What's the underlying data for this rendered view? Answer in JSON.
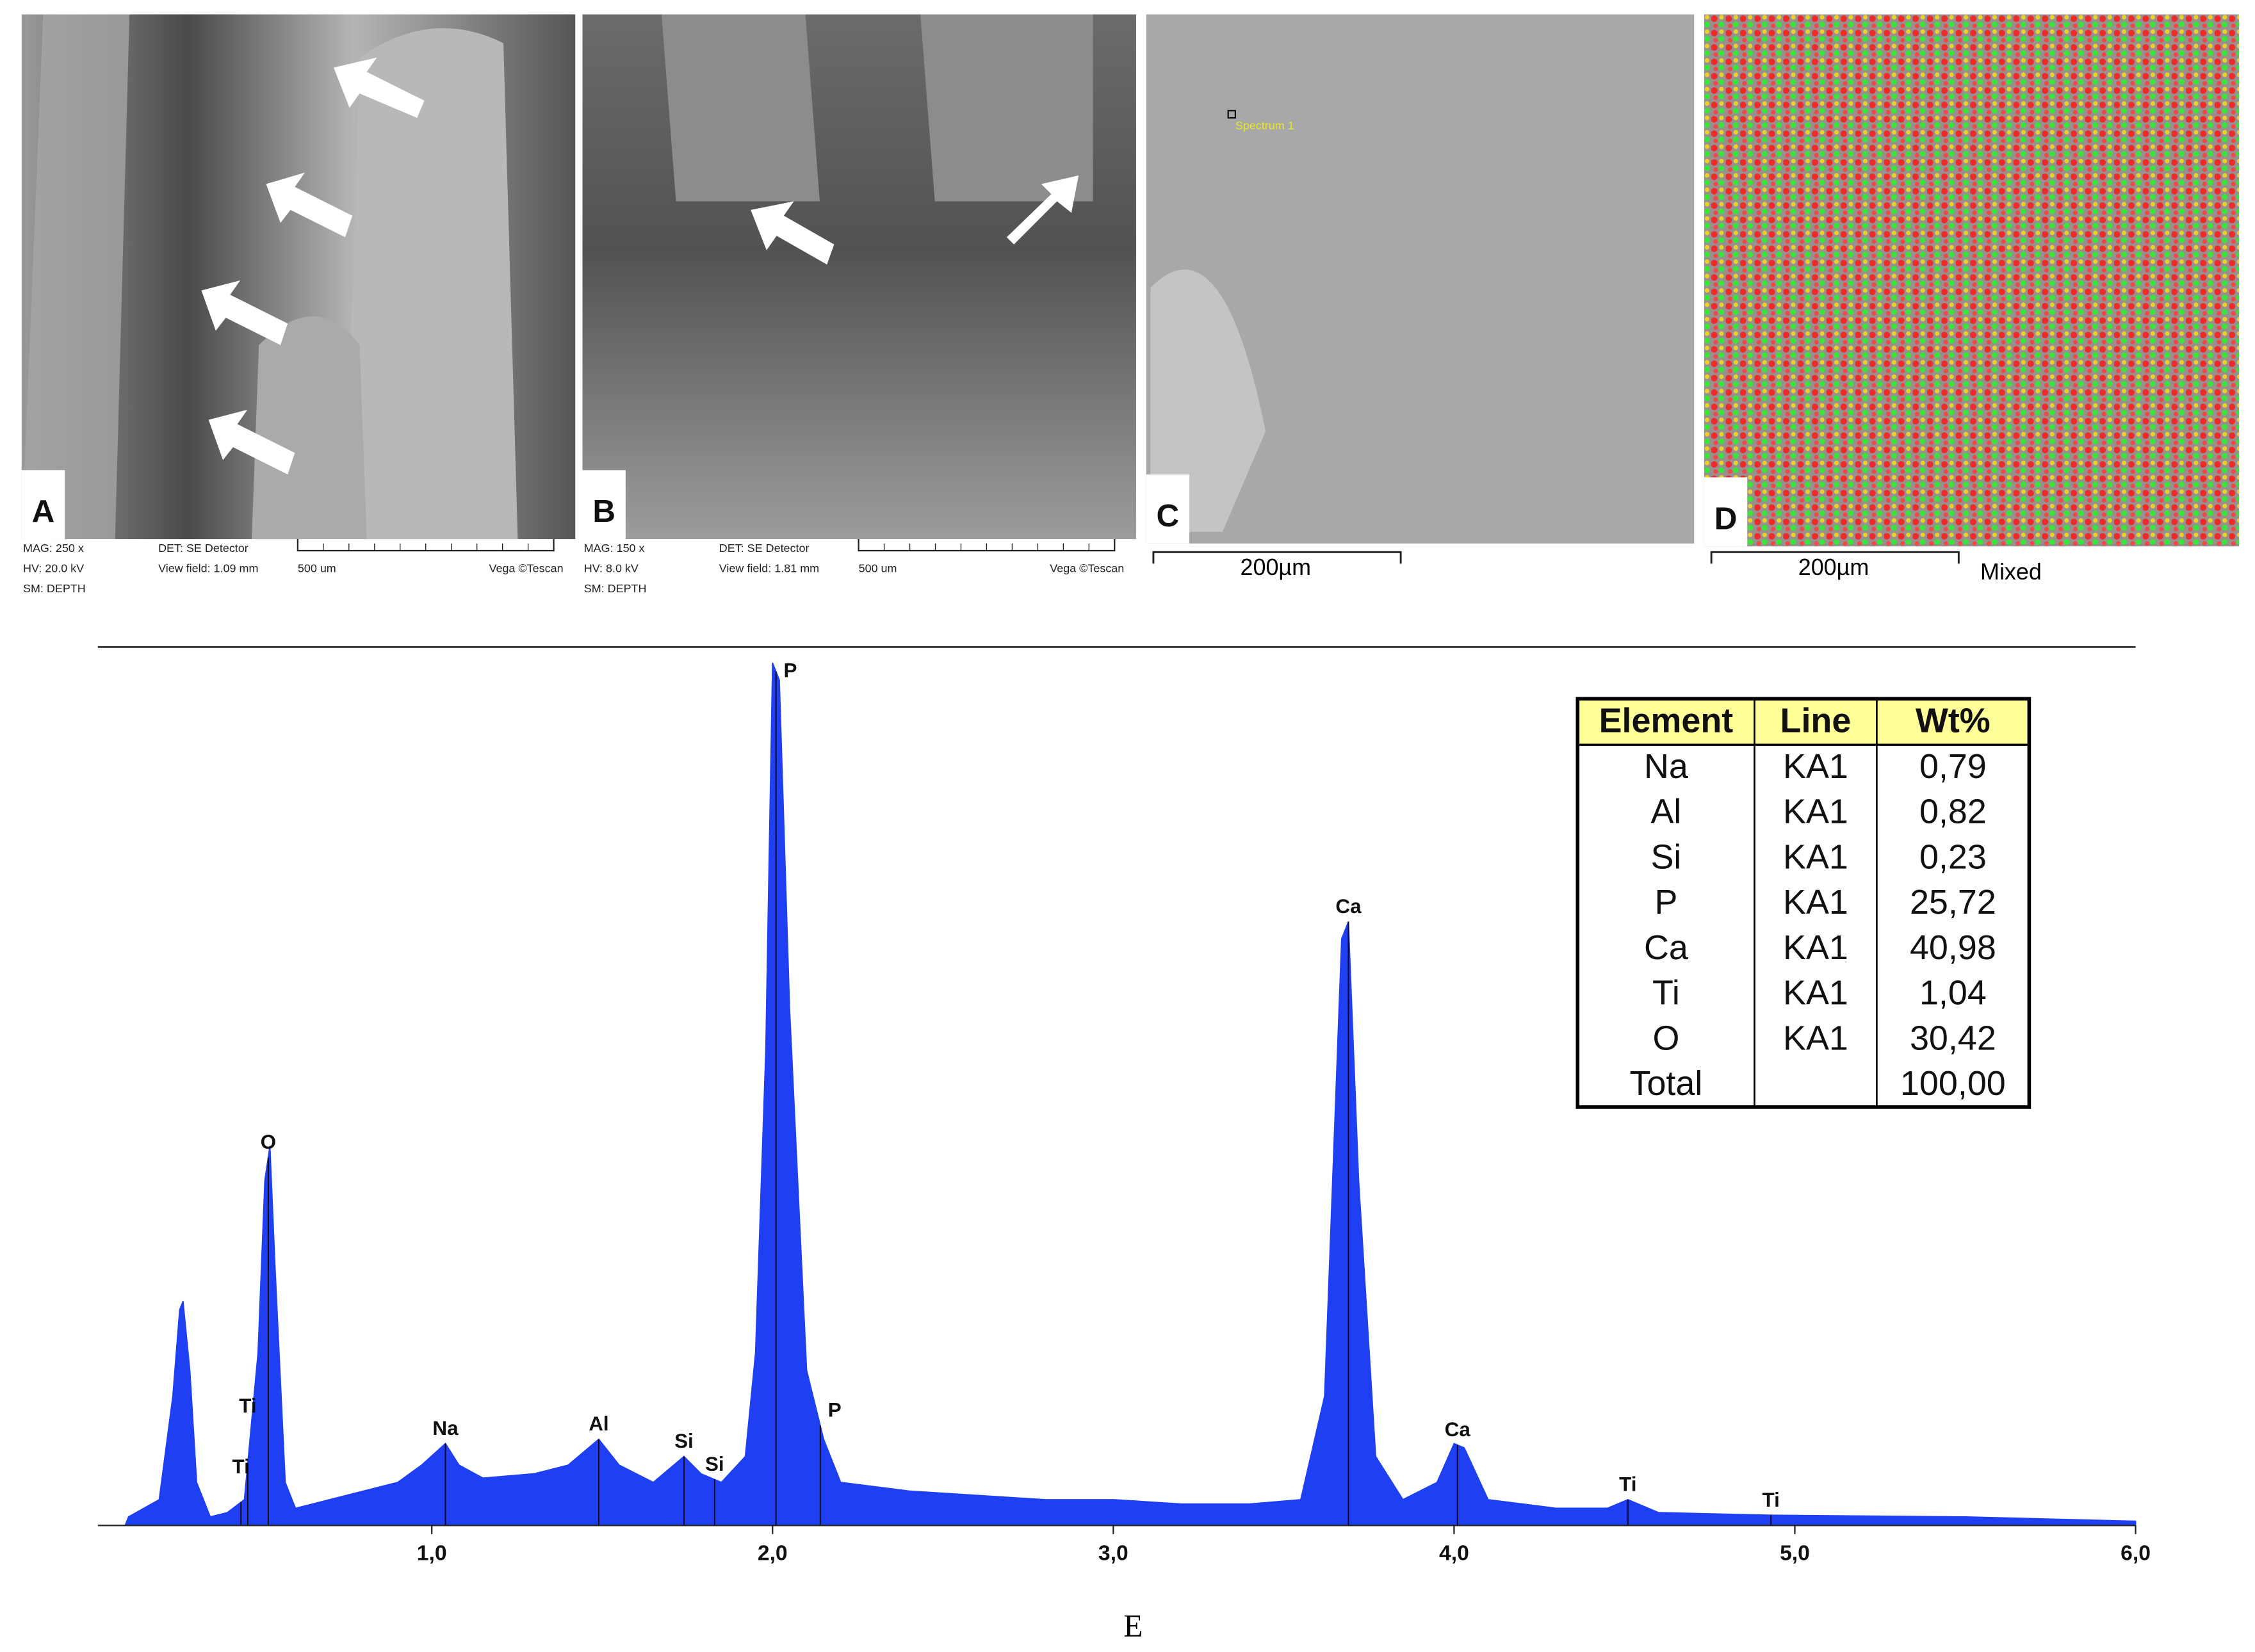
{
  "panels": [
    {
      "label": "A",
      "meta": [
        "MAG: 250 x",
        "HV: 20.0 kV",
        "SM: DEPTH",
        "DET: SE Detector",
        "View field: 1.09 mm",
        "500 um",
        "Vega ©Tescan"
      ]
    },
    {
      "label": "B",
      "meta": [
        "MAG: 150 x",
        "HV: 8.0 kV",
        "SM: DEPTH",
        "DET: SE Detector",
        "View field: 1.81 mm",
        "500 um",
        "Vega ©Tescan"
      ]
    },
    {
      "label": "C",
      "overlay": "Spectrum 1",
      "scale": "200µm"
    },
    {
      "label": "D",
      "scale": "200µm",
      "caption": "Mixed"
    }
  ],
  "chart_data": {
    "type": "area",
    "caption": "E",
    "color": "#1e3ff2",
    "x": [
      0.1,
      0.11,
      0.2,
      0.24,
      0.26,
      0.27,
      0.29,
      0.31,
      0.35,
      0.4,
      0.45,
      0.49,
      0.51,
      0.525,
      0.54,
      0.57,
      0.6,
      0.7,
      0.8,
      0.9,
      0.97,
      1.04,
      1.08,
      1.15,
      1.3,
      1.4,
      1.49,
      1.55,
      1.65,
      1.74,
      1.79,
      1.85,
      1.92,
      1.95,
      1.98,
      2.0,
      2.02,
      2.05,
      2.1,
      2.15,
      2.2,
      2.4,
      2.6,
      2.8,
      3.0,
      3.2,
      3.4,
      3.55,
      3.62,
      3.67,
      3.69,
      3.72,
      3.77,
      3.85,
      3.95,
      4.0,
      4.03,
      4.1,
      4.3,
      4.45,
      4.51,
      4.6,
      4.93,
      5.5,
      6.0
    ],
    "values": [
      0,
      1,
      3,
      15,
      25,
      26,
      18,
      5,
      1,
      1.5,
      3,
      20,
      40,
      44,
      30,
      5,
      2,
      3,
      4,
      5,
      7,
      9.5,
      7,
      5.5,
      6,
      7,
      10,
      7,
      5,
      8,
      6,
      5,
      8,
      20,
      55,
      100,
      98,
      60,
      18,
      10,
      5,
      4,
      3.5,
      3,
      3,
      2.5,
      2.5,
      3,
      15,
      68,
      70,
      40,
      8,
      3,
      5,
      9.5,
      9,
      3,
      2,
      2,
      3,
      1.5,
      1.2,
      1,
      0.5
    ],
    "xlim": [
      0.02,
      6.0
    ],
    "ylim": [
      0,
      100
    ],
    "xticks": [
      {
        "value": 1,
        "label": "1,0"
      },
      {
        "value": 2,
        "label": "2,0"
      },
      {
        "value": 3,
        "label": "3,0"
      },
      {
        "value": 4,
        "label": "4,0"
      },
      {
        "value": 5,
        "label": "5,0"
      },
      {
        "value": 6,
        "label": "6,0"
      }
    ],
    "annotations": [
      {
        "text": "Ti",
        "x": 0.44
      },
      {
        "text": "Ti",
        "x": 0.46
      },
      {
        "text": "O",
        "x": 0.52
      },
      {
        "text": "Na",
        "x": 1.04
      },
      {
        "text": "Al",
        "x": 1.49
      },
      {
        "text": "Si",
        "x": 1.74
      },
      {
        "text": "Si",
        "x": 1.83
      },
      {
        "text": "P",
        "x": 2.01
      },
      {
        "text": "P",
        "x": 2.14
      },
      {
        "text": "Ca",
        "x": 3.69
      },
      {
        "text": "Ca",
        "x": 4.01
      },
      {
        "text": "Ti",
        "x": 4.51
      },
      {
        "text": "Ti",
        "x": 4.93
      }
    ]
  },
  "table": {
    "header": [
      "Element",
      "Line",
      "Wt%"
    ],
    "rows": [
      [
        "Na",
        "KA1",
        "0,79"
      ],
      [
        "Al",
        "KA1",
        "0,82"
      ],
      [
        "Si",
        "KA1",
        "0,23"
      ],
      [
        "P",
        "KA1",
        "25,72"
      ],
      [
        "Ca",
        "KA1",
        "40,98"
      ],
      [
        "Ti",
        "KA1",
        "1,04"
      ],
      [
        "O",
        "KA1",
        "30,42"
      ],
      [
        "Total",
        null,
        "100,00"
      ]
    ]
  }
}
